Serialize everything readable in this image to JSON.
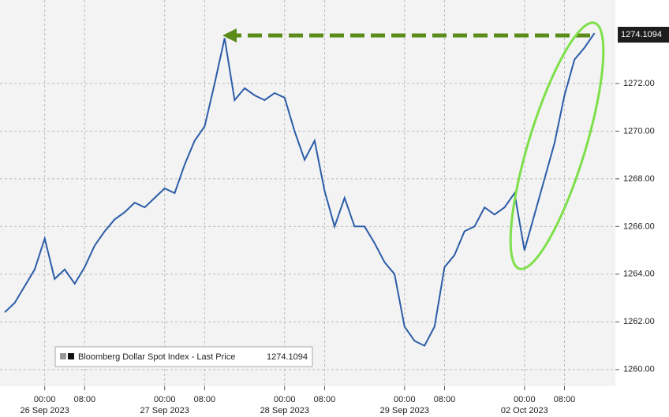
{
  "chart_data": {
    "type": "line",
    "x": [
      "25 Sep 2023 16:00",
      "25 Sep 2023 18:00",
      "25 Sep 2023 20:00",
      "25 Sep 2023 22:00",
      "26 Sep 2023 00:00",
      "26 Sep 2023 02:00",
      "26 Sep 2023 04:00",
      "26 Sep 2023 06:00",
      "26 Sep 2023 08:00",
      "26 Sep 2023 10:00",
      "26 Sep 2023 12:00",
      "26 Sep 2023 14:00",
      "26 Sep 2023 16:00",
      "26 Sep 2023 18:00",
      "26 Sep 2023 20:00",
      "26 Sep 2023 22:00",
      "27 Sep 2023 00:00",
      "27 Sep 2023 02:00",
      "27 Sep 2023 04:00",
      "27 Sep 2023 06:00",
      "27 Sep 2023 08:00",
      "27 Sep 2023 10:00",
      "27 Sep 2023 12:00",
      "27 Sep 2023 14:00",
      "27 Sep 2023 16:00",
      "27 Sep 2023 18:00",
      "27 Sep 2023 20:00",
      "27 Sep 2023 22:00",
      "28 Sep 2023 00:00",
      "28 Sep 2023 02:00",
      "28 Sep 2023 04:00",
      "28 Sep 2023 06:00",
      "28 Sep 2023 08:00",
      "28 Sep 2023 10:00",
      "28 Sep 2023 12:00",
      "28 Sep 2023 14:00",
      "28 Sep 2023 16:00",
      "28 Sep 2023 18:00",
      "28 Sep 2023 20:00",
      "28 Sep 2023 22:00",
      "29 Sep 2023 00:00",
      "29 Sep 2023 02:00",
      "29 Sep 2023 04:00",
      "29 Sep 2023 06:00",
      "29 Sep 2023 08:00",
      "29 Sep 2023 10:00",
      "29 Sep 2023 12:00",
      "29 Sep 2023 14:00",
      "29 Sep 2023 16:00",
      "29 Sep 2023 18:00",
      "29 Sep 2023 20:00",
      "29 Sep 2023 22:00",
      "02 Oct 2023 00:00",
      "02 Oct 2023 02:00",
      "02 Oct 2023 04:00",
      "02 Oct 2023 06:00",
      "02 Oct 2023 08:00",
      "02 Oct 2023 10:00",
      "02 Oct 2023 12:00",
      "02 Oct 2023 14:00"
    ],
    "series": [
      {
        "name": "Bloomberg Dollar Spot Index - Last Price",
        "color": "#2b5da8",
        "values": [
          1262.4,
          1262.8,
          1263.5,
          1264.2,
          1265.5,
          1263.8,
          1264.2,
          1263.6,
          1264.3,
          1265.2,
          1265.8,
          1266.3,
          1266.6,
          1267.0,
          1266.8,
          1267.2,
          1267.6,
          1267.4,
          1268.6,
          1269.6,
          1270.2,
          1272.0,
          1273.9,
          1271.3,
          1271.8,
          1271.5,
          1271.3,
          1271.6,
          1271.4,
          1270.0,
          1268.8,
          1269.6,
          1267.5,
          1266.0,
          1267.2,
          1266.0,
          1266.0,
          1265.3,
          1264.5,
          1264.0,
          1261.8,
          1261.2,
          1261.0,
          1261.8,
          1264.3,
          1264.8,
          1265.8,
          1266.0,
          1266.8,
          1266.5,
          1266.8,
          1267.4,
          1265.0,
          1266.5,
          1268.0,
          1269.5,
          1271.5,
          1273.0,
          1273.5,
          1274.1094
        ]
      }
    ],
    "ylim": [
      1259.3,
      1275.5
    ],
    "yticks": [
      {
        "value": 1260,
        "label": "1260.00"
      },
      {
        "value": 1262,
        "label": "1262.00"
      },
      {
        "value": 1264,
        "label": "1264.00"
      },
      {
        "value": 1266,
        "label": "1266.00"
      },
      {
        "value": 1268,
        "label": "1268.00"
      },
      {
        "value": 1270,
        "label": "1270.00"
      },
      {
        "value": 1272,
        "label": "1272.00"
      }
    ],
    "xticks": [
      {
        "value": "26 Sep 2023 00:00",
        "label": "00:00"
      },
      {
        "value": "26 Sep 2023 08:00",
        "label": "08:00"
      },
      {
        "value": "27 Sep 2023 00:00",
        "label": "00:00"
      },
      {
        "value": "27 Sep 2023 08:00",
        "label": "08:00"
      },
      {
        "value": "28 Sep 2023 00:00",
        "label": "00:00"
      },
      {
        "value": "28 Sep 2023 08:00",
        "label": "08:00"
      },
      {
        "value": "29 Sep 2023 00:00",
        "label": "00:00"
      },
      {
        "value": "29 Sep 2023 08:00",
        "label": "08:00"
      },
      {
        "value": "02 Oct 2023 00:00",
        "label": "00:00"
      },
      {
        "value": "02 Oct 2023 08:00",
        "label": "08:00"
      }
    ],
    "xdates": [
      {
        "value": "26 Sep 2023 00:00",
        "label": "26 Sep 2023"
      },
      {
        "value": "27 Sep 2023 00:00",
        "label": "27 Sep 2023"
      },
      {
        "value": "28 Sep 2023 00:00",
        "label": "28 Sep 2023"
      },
      {
        "value": "29 Sep 2023 00:00",
        "label": "29 Sep 2023"
      },
      {
        "value": "02 Oct 2023 00:00",
        "label": "02 Oct 2023"
      }
    ],
    "grid": true
  }
}
